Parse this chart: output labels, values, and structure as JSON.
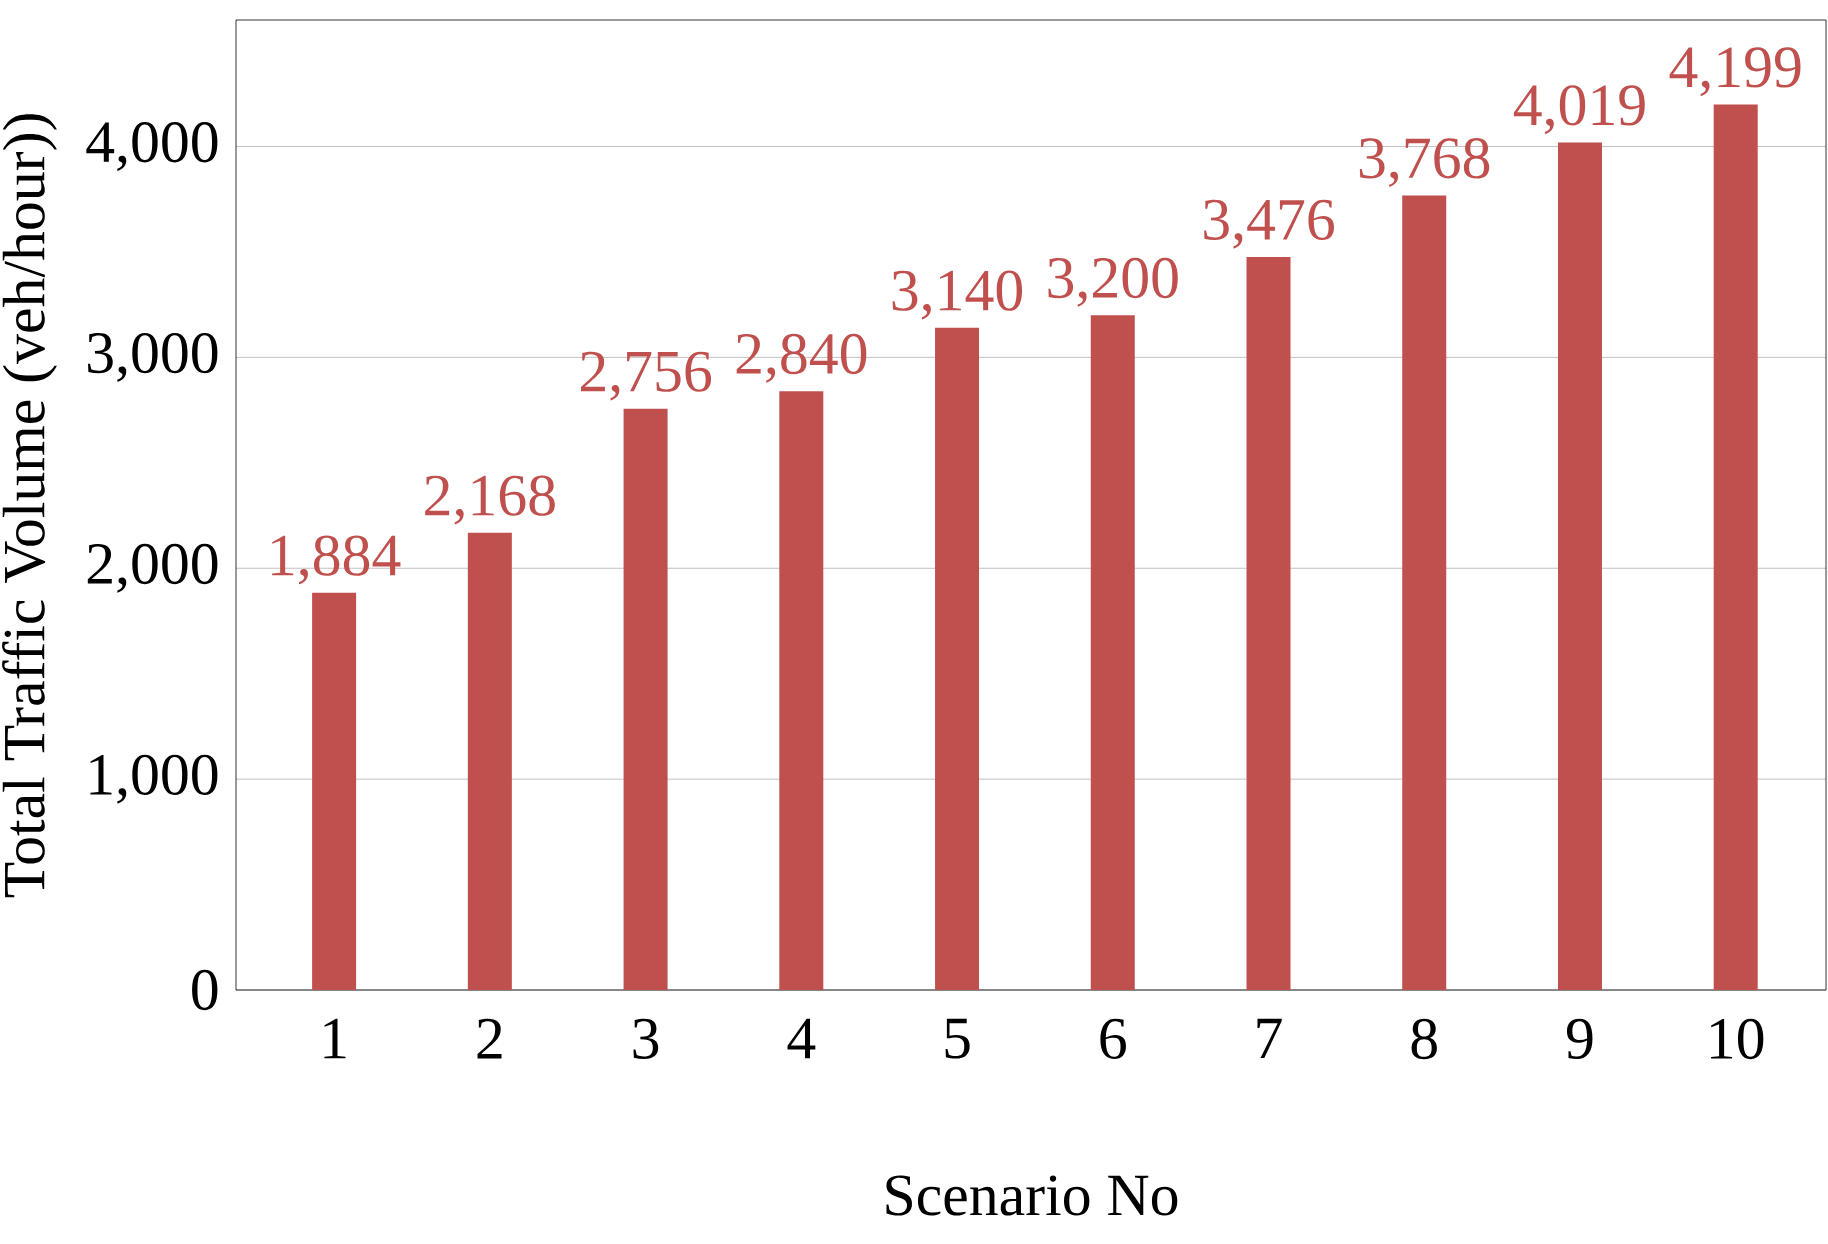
{
  "chart_data": {
    "type": "bar",
    "xlabel": "Scenario No",
    "ylabel": "Total Traffic Volume (veh/hour))",
    "categories": [
      "1",
      "2",
      "3",
      "4",
      "5",
      "6",
      "7",
      "8",
      "9",
      "10"
    ],
    "values": [
      1884,
      2168,
      2756,
      2840,
      3140,
      3200,
      3476,
      3768,
      4019,
      4199
    ],
    "value_labels": [
      "1,884",
      "2,168",
      "2,756",
      "2,840",
      "3,140",
      "3,200",
      "3,476",
      "3,768",
      "4,019",
      "4,199"
    ],
    "color": "#c0504d",
    "ylim": [
      0,
      4600
    ],
    "yticks": [
      0,
      {
        "value": 1000,
        "label": "1,000"
      },
      {
        "value": 2000,
        "label": "2,000"
      },
      {
        "value": 3000,
        "label": "3,000"
      },
      {
        "value": 4000,
        "label": "4,000"
      }
    ],
    "grid": "y"
  }
}
